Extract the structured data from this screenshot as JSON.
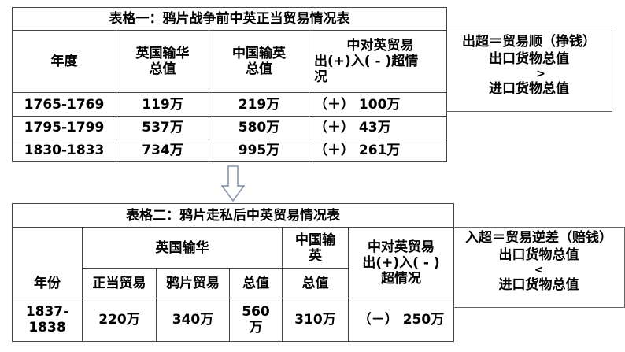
{
  "table1": {
    "title": "表格一：鸦片战争前中英正当贸易情况表",
    "headers": [
      "年度",
      "英国输华\n总值",
      "中国输英\n总值",
      "中对英贸易出(+)入(－)超情况"
    ],
    "h1a": "英国输华",
    "h1b": "总值",
    "h2a": "中国输英",
    "h2b": "总值",
    "h3a": "中对英贸易",
    "h3b": "出(+)入( - )超情",
    "h3c": "况",
    "rows": [
      [
        "1765-1769",
        "119万",
        "219万",
        "（＋） 100万"
      ],
      [
        "1795-1799",
        "537万",
        "580万",
        "（＋） 43万"
      ],
      [
        "1830-1833",
        "734万",
        "995万",
        "（＋） 261万"
      ]
    ]
  },
  "note1": {
    "line1": "出超＝贸易顺（挣钱）",
    "line2": "出口货物总值",
    "line3": ">",
    "line4": "进口货物总值"
  },
  "table2": {
    "title": "表格二：鸦片走私后中英贸易情况表",
    "year_header": "年份",
    "uk_header": "英国输华",
    "cn_header_a": "中国输",
    "cn_header_b": "英",
    "balance_a": "中对英贸易",
    "balance_b": "出(+)入( - )",
    "balance_c": "超情况",
    "sub_headers": [
      "正当贸易",
      "鸦片贸易",
      "总值",
      "总值"
    ],
    "row": {
      "year_a": "1837-",
      "year_b": "1838",
      "legal": "220万",
      "opium": "340万",
      "total_a": "560",
      "total_b": "万",
      "cn_total": "310万",
      "balance": "（－） 250万"
    }
  },
  "note2": {
    "line1": "入超＝贸易逆差（赔钱）",
    "line2": "出口货物总值",
    "line3": "<",
    "line4": "进口货物总值"
  }
}
